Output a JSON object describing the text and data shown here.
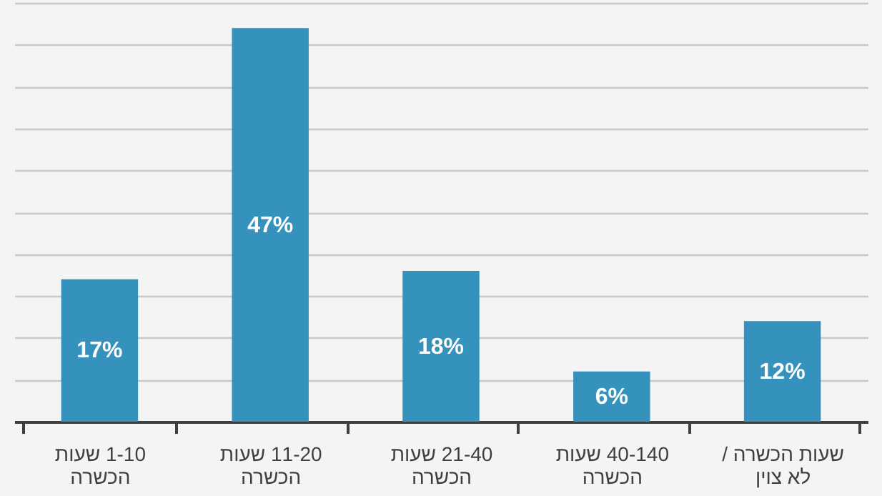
{
  "chart_data": {
    "type": "bar",
    "categories": [
      "1-10 שעות\nהכשרה",
      "11-20 שעות\nהכשרה",
      "21-40 שעות\nהכשרה",
      "40-140 שעות\nהכשרה",
      "שעות הכשרה /\nלא צוין"
    ],
    "values": [
      17,
      47,
      18,
      6,
      12
    ],
    "value_labels": [
      "17%",
      "47%",
      "18%",
      "6%",
      "12%"
    ],
    "color": "#3592bd",
    "grid": true
  }
}
